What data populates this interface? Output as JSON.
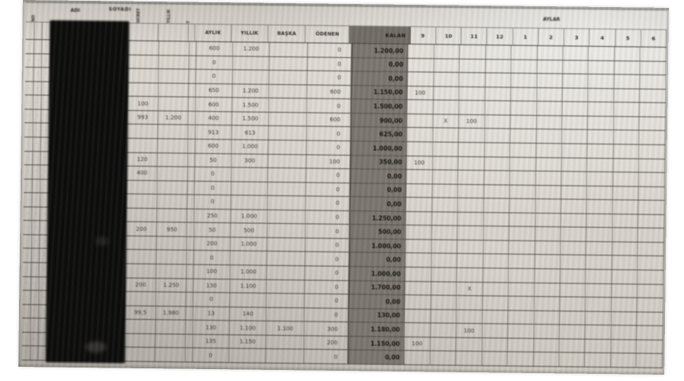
{
  "photo": {
    "colors": {
      "paper": "#d6d2ca",
      "kalan_bg": "#79756e",
      "grid_line": "#37342f",
      "redaction": "#0b0b0b"
    },
    "header": {
      "adi": "ADI",
      "soyadi": "SOYADI",
      "aylar": "AYLAR",
      "rotated": [
        "NO",
        "ÜCRET",
        "YILLIK",
        "T"
      ],
      "columns": {
        "aylik": "AYLIK",
        "yillik": "YILLIK",
        "baska": "BAŞKA",
        "odenen": "ÖDENEN",
        "kalan": "KALAN"
      },
      "months": [
        "9",
        "10",
        "11",
        "12",
        "1",
        "2",
        "3",
        "4",
        "5",
        "6"
      ]
    },
    "tiny_mark": "·",
    "rows": [
      {
        "na": "",
        "nb": "",
        "aylik": "600",
        "yillik": "1.200",
        "baska": "",
        "odenen": "0",
        "kalan": "1.200,00",
        "m": [
          "",
          "",
          "",
          "",
          "",
          "",
          "",
          "",
          "",
          ""
        ]
      },
      {
        "na": "",
        "nb": "",
        "aylik": "0",
        "yillik": "",
        "baska": "",
        "odenen": "0",
        "kalan": "0,00",
        "m": [
          "",
          "",
          "",
          "",
          "",
          "",
          "",
          "",
          "",
          ""
        ]
      },
      {
        "na": "",
        "nb": "",
        "aylik": "0",
        "yillik": "",
        "baska": "",
        "odenen": "0",
        "kalan": "0,00",
        "m": [
          "",
          "",
          "",
          "",
          "",
          "",
          "",
          "",
          "",
          ""
        ]
      },
      {
        "na": "",
        "nb": "",
        "aylik": "650",
        "yillik": "1.200",
        "baska": "",
        "odenen": "600",
        "kalan": "1.150,00",
        "m": [
          "100",
          "",
          "",
          "",
          "",
          "",
          "",
          "",
          "",
          ""
        ]
      },
      {
        "na": "100",
        "nb": "",
        "aylik": "600",
        "yillik": "1.500",
        "baska": "",
        "odenen": "0",
        "kalan": "1.500,00",
        "m": [
          "",
          "",
          "",
          "",
          "",
          "",
          "",
          "",
          "",
          ""
        ]
      },
      {
        "na": "993",
        "nb": "1.200",
        "aylik": "400",
        "yillik": "1.500",
        "baska": "",
        "odenen": "600",
        "kalan": "900,00",
        "m": [
          "",
          "X",
          "100",
          "",
          "",
          "",
          "",
          "",
          "",
          ""
        ]
      },
      {
        "na": "",
        "nb": "",
        "aylik": "913",
        "yillik": "613",
        "baska": "",
        "odenen": "0",
        "kalan": "625,00",
        "m": [
          "",
          "",
          "",
          "",
          "",
          "",
          "",
          "",
          "",
          ""
        ]
      },
      {
        "na": "",
        "nb": "",
        "aylik": "600",
        "yillik": "1.000",
        "baska": "",
        "odenen": "0",
        "kalan": "1.000,00",
        "m": [
          "",
          "",
          "",
          "",
          "",
          "",
          "",
          "",
          "",
          ""
        ]
      },
      {
        "na": "120",
        "nb": "",
        "aylik": "50",
        "yillik": "300",
        "baska": "",
        "odenen": "100",
        "kalan": "350,00",
        "m": [
          "100",
          "",
          "",
          "",
          "",
          "",
          "",
          "",
          "",
          ""
        ]
      },
      {
        "na": "400",
        "nb": "",
        "aylik": "0",
        "yillik": "",
        "baska": "",
        "odenen": "0",
        "kalan": "0,00",
        "m": [
          "",
          "",
          "",
          "",
          "",
          "",
          "",
          "",
          "",
          ""
        ]
      },
      {
        "na": "",
        "nb": "",
        "aylik": "0",
        "yillik": "",
        "baska": "",
        "odenen": "0",
        "kalan": "0,00",
        "m": [
          "",
          "",
          "",
          "",
          "",
          "",
          "",
          "",
          "",
          ""
        ]
      },
      {
        "na": "",
        "nb": "",
        "aylik": "0",
        "yillik": "",
        "baska": "",
        "odenen": "0",
        "kalan": "0,00",
        "m": [
          "",
          "",
          "",
          "",
          "",
          "",
          "",
          "",
          "",
          ""
        ]
      },
      {
        "na": "",
        "nb": "",
        "aylik": "250",
        "yillik": "1.000",
        "baska": "",
        "odenen": "0",
        "kalan": "1.250,00",
        "m": [
          "",
          "",
          "",
          "",
          "",
          "",
          "",
          "",
          "",
          ""
        ]
      },
      {
        "na": "200",
        "nb": "950",
        "aylik": "50",
        "yillik": "500",
        "baska": "",
        "odenen": "0",
        "kalan": "500,00",
        "m": [
          "",
          "",
          "",
          "",
          "",
          "",
          "",
          "",
          "",
          ""
        ]
      },
      {
        "na": "",
        "nb": "",
        "aylik": "200",
        "yillik": "1.000",
        "baska": "",
        "odenen": "0",
        "kalan": "1.000,00",
        "m": [
          "",
          "",
          "",
          "",
          "",
          "",
          "",
          "",
          "",
          ""
        ]
      },
      {
        "na": "",
        "nb": "",
        "aylik": "0",
        "yillik": "",
        "baska": "",
        "odenen": "0",
        "kalan": "0,00",
        "m": [
          "",
          "",
          "",
          "",
          "",
          "",
          "",
          "",
          "",
          ""
        ]
      },
      {
        "na": "",
        "nb": "",
        "aylik": "100",
        "yillik": "1.000",
        "baska": "",
        "odenen": "0",
        "kalan": "1.000,00",
        "m": [
          "",
          "",
          "",
          "",
          "",
          "",
          "",
          "",
          "",
          ""
        ]
      },
      {
        "na": "200",
        "nb": "1.250",
        "aylik": "130",
        "yillik": "1.100",
        "baska": "",
        "odenen": "0",
        "kalan": "1.700,00",
        "m": [
          "",
          "",
          "X",
          "",
          "",
          "",
          "",
          "",
          "",
          ""
        ]
      },
      {
        "na": "",
        "nb": "",
        "aylik": "0",
        "yillik": "",
        "baska": "",
        "odenen": "0",
        "kalan": "0,00",
        "m": [
          "",
          "",
          "",
          "",
          "",
          "",
          "",
          "",
          "",
          ""
        ]
      },
      {
        "na": "99,5",
        "nb": "1.980",
        "aylik": "13",
        "yillik": "140",
        "baska": "",
        "odenen": "0",
        "kalan": "130,00",
        "m": [
          "",
          "",
          "",
          "",
          "",
          "",
          "",
          "",
          "",
          ""
        ]
      },
      {
        "na": "",
        "nb": "",
        "aylik": "130",
        "yillik": "1.100",
        "baska": "1.100",
        "odenen": "300",
        "kalan": "1.180,00",
        "m": [
          "",
          "",
          "100",
          "",
          "",
          "",
          "",
          "",
          "",
          ""
        ]
      },
      {
        "na": "",
        "nb": "",
        "aylik": "135",
        "yillik": "1.150",
        "baska": "",
        "odenen": "200",
        "kalan": "1.150,00",
        "m": [
          "100",
          "",
          "",
          "",
          "",
          "",
          "",
          "",
          "",
          ""
        ]
      },
      {
        "na": "",
        "nb": "",
        "aylik": "0",
        "yillik": "",
        "baska": "",
        "odenen": "0",
        "kalan": "0,00",
        "m": [
          "",
          "",
          "",
          "",
          "",
          "",
          "",
          "",
          "",
          ""
        ]
      }
    ]
  }
}
